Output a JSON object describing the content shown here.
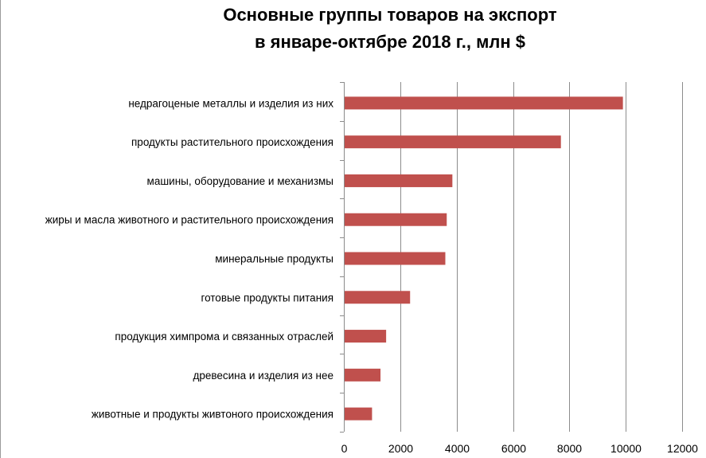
{
  "chart_data": {
    "type": "bar",
    "orientation": "horizontal",
    "title": [
      "Основные группы товаров на экспорт",
      "в январе-октябре 2018 г., млн $"
    ],
    "categories": [
      "недрагоценые металлы и изделия из них",
      "продукты растительного происхождения",
      "машины, оборудование и механизмы",
      "жиры и масла животного и растительного происхождения",
      "минеральные продукты",
      "готовые продукты питания",
      "продукция химпрома и связанных отраслей",
      "древесина и изделия из нее",
      "животные и продукты живтоного происхождения"
    ],
    "values": [
      9900,
      7700,
      3850,
      3650,
      3600,
      2350,
      1500,
      1300,
      1000
    ],
    "xlim": [
      0,
      12000
    ],
    "xticks": [
      "0",
      "2000",
      "4000",
      "6000",
      "8000",
      "10000",
      "12000"
    ],
    "grid": true,
    "bar_color": "#c0504d",
    "grid_color": "#8c8c8c",
    "legend": "none"
  }
}
